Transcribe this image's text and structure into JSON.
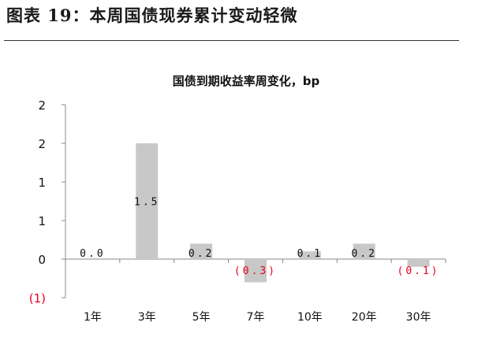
{
  "page_title": "图表 19：本周国债现券累计变动轻微",
  "chart_data": {
    "type": "bar",
    "title": "国债到期收益率周变化，bp",
    "xlabel": "",
    "ylabel": "",
    "categories": [
      "1年",
      "3年",
      "5年",
      "7年",
      "10年",
      "20年",
      "30年"
    ],
    "values": [
      0.0,
      1.5,
      0.2,
      -0.3,
      0.1,
      0.2,
      -0.1
    ],
    "value_labels": [
      "0.0",
      "1.5",
      "0.2",
      "(0.3)",
      "0.1",
      "0.2",
      "(0.1)"
    ],
    "y_ticks": [
      {
        "value": 2.0,
        "label": "2"
      },
      {
        "value": 1.5,
        "label": "2"
      },
      {
        "value": 1.0,
        "label": "1"
      },
      {
        "value": 0.5,
        "label": "1"
      },
      {
        "value": 0.0,
        "label": "0"
      },
      {
        "value": -0.5,
        "label": "(1)"
      }
    ],
    "ylim": [
      -0.5,
      2.0
    ],
    "grid": false,
    "legend": "none",
    "bar_color": "#c8c8c8",
    "negative_label_color": "#e8001c",
    "text_color": "#111111"
  }
}
